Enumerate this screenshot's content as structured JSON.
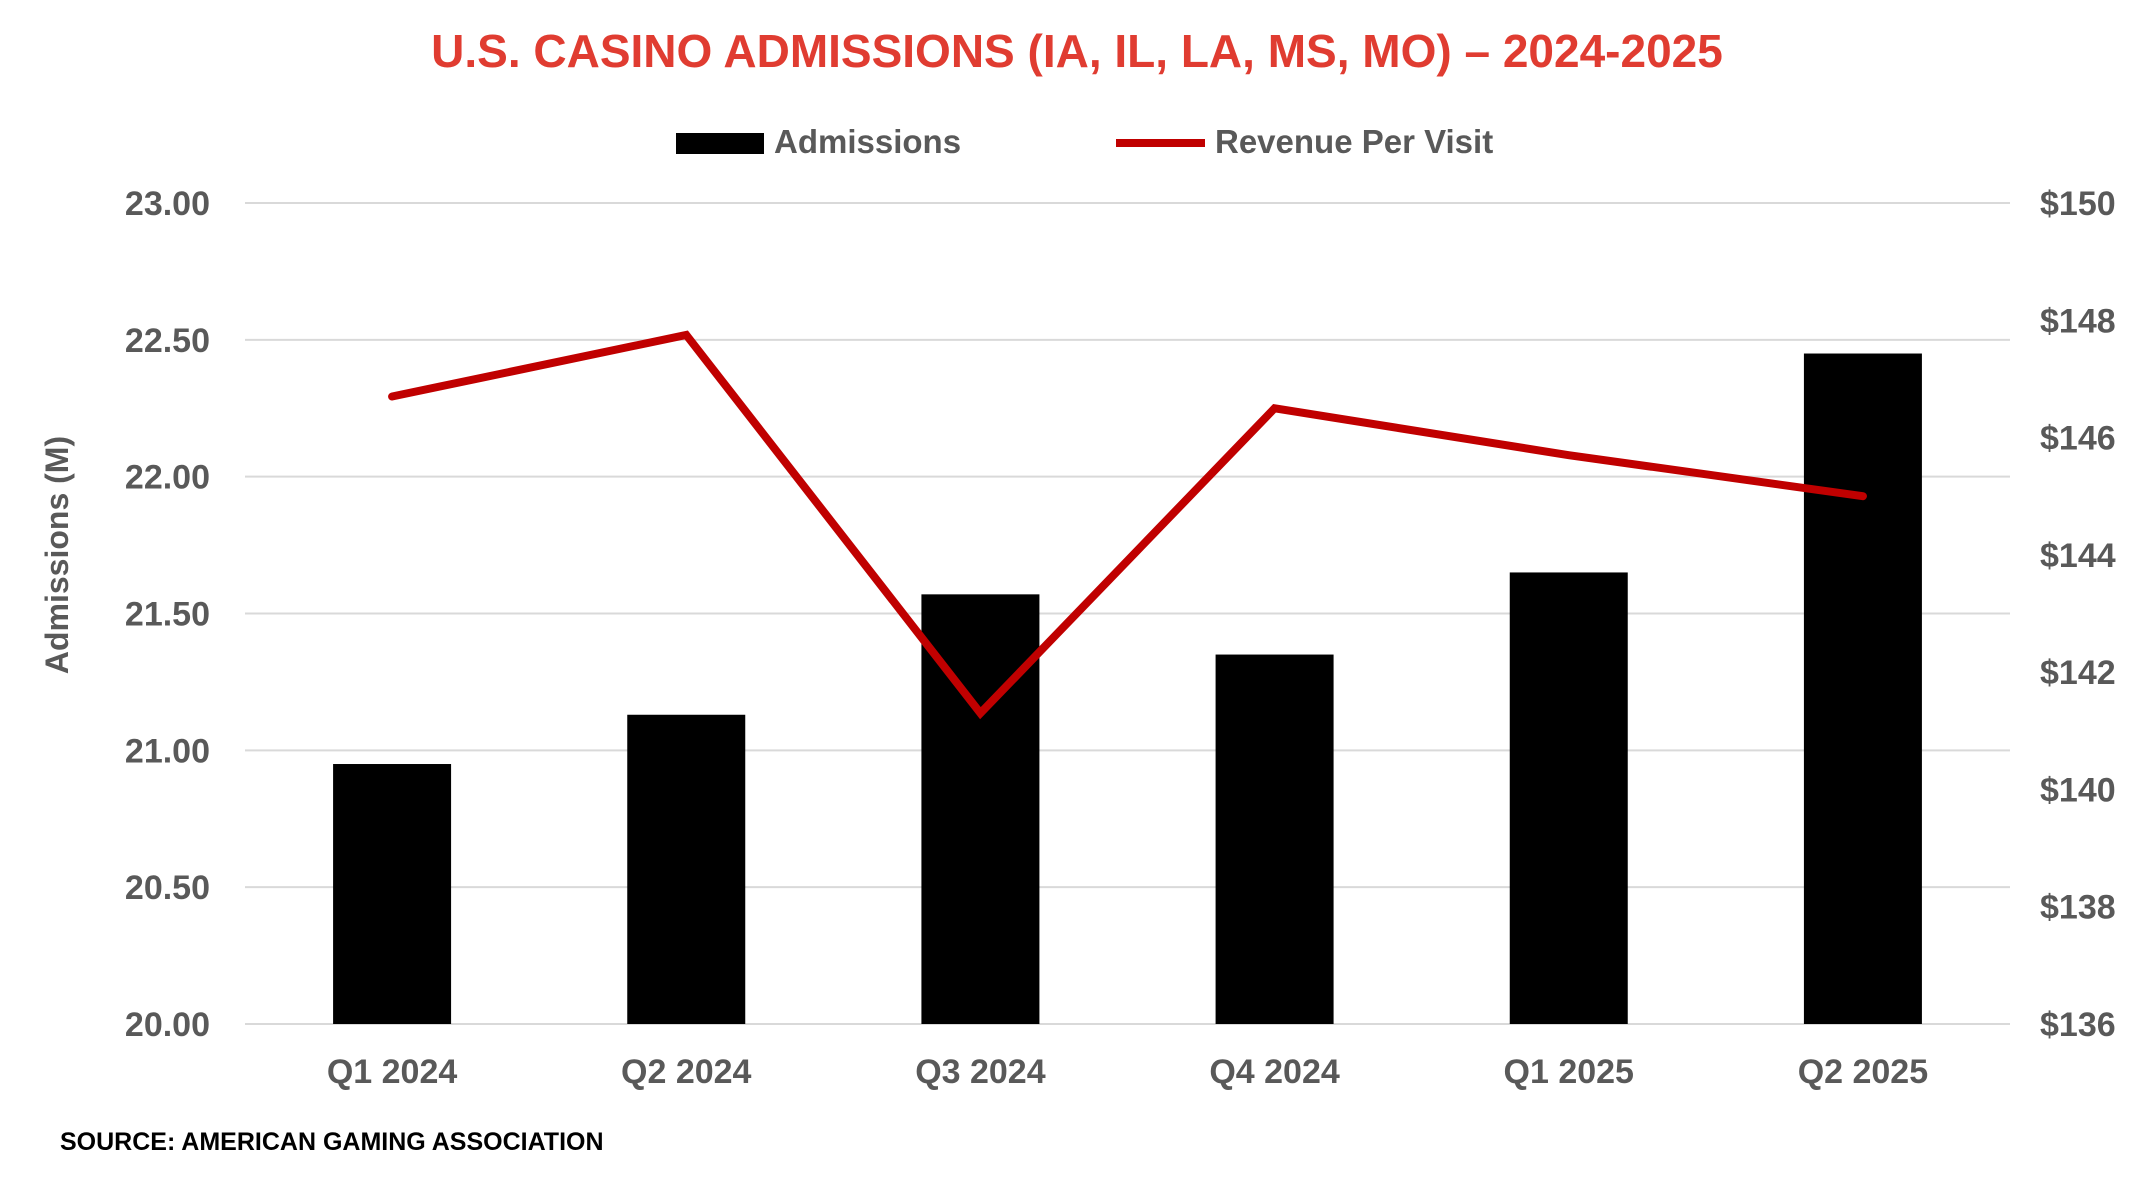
{
  "colors": {
    "title": "#E03C31",
    "bar": "#000000",
    "line": "#C00000",
    "grid": "#D9D9D9",
    "tick_text": "#595959"
  },
  "chart_data": {
    "type": "bar",
    "title": "U.S. CASINO ADMISSIONS (IA, IL, LA, MS, MO) – 2024-2025",
    "categories": [
      "Q1 2024",
      "Q2 2024",
      "Q3 2024",
      "Q4 2024",
      "Q1 2025",
      "Q2 2025"
    ],
    "series": [
      {
        "name": "Admissions",
        "type": "bar",
        "axis": "left",
        "values": [
          20.95,
          21.13,
          21.57,
          21.35,
          21.65,
          22.45
        ]
      },
      {
        "name": "Revenue Per Visit",
        "type": "line",
        "axis": "right",
        "values": [
          146.7,
          147.75,
          141.3,
          146.5,
          145.7,
          145.0
        ]
      }
    ],
    "ylabel": "Admissions (M)",
    "ylim": [
      20.0,
      23.0
    ],
    "yticks": [
      "20.00",
      "20.50",
      "21.00",
      "21.50",
      "22.00",
      "22.50",
      "23.00"
    ],
    "ytick_values": [
      20.0,
      20.5,
      21.0,
      21.5,
      22.0,
      22.5,
      23.0
    ],
    "y2lim": [
      136,
      150
    ],
    "y2ticks": [
      "$136",
      "$138",
      "$140",
      "$142",
      "$144",
      "$146",
      "$148",
      "$150"
    ],
    "y2tick_values": [
      136,
      138,
      140,
      142,
      144,
      146,
      148,
      150
    ],
    "legend": "top-center",
    "grid": true,
    "source": "SOURCE: AMERICAN GAMING ASSOCIATION"
  }
}
